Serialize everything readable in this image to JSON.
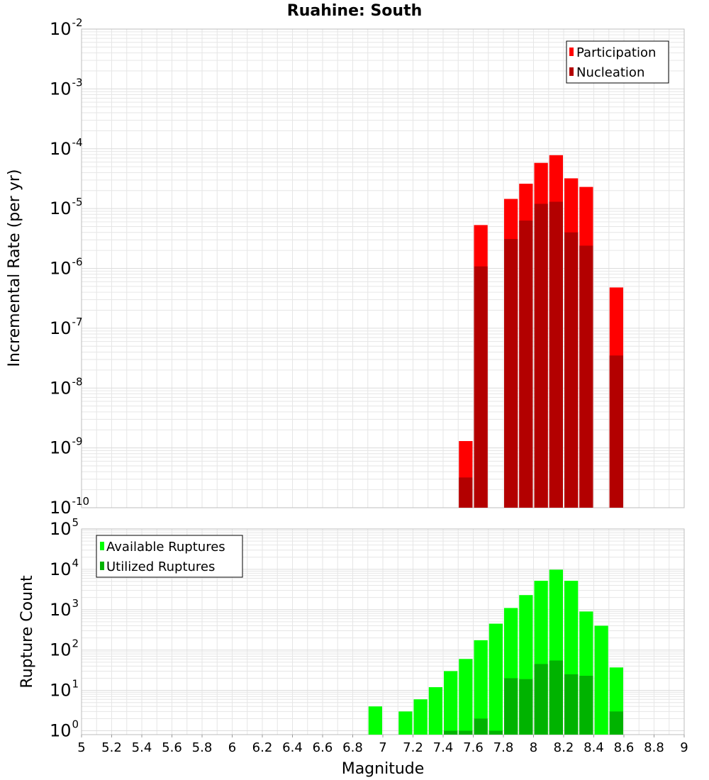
{
  "colors": {
    "participation": "#ff0000",
    "nucleation": "#b30000",
    "available": "#00ff00",
    "utilized": "#00b300",
    "grid": "#e6e6e6",
    "frame": "#bdbdbd"
  },
  "chart_data": [
    {
      "type": "bar",
      "title": "Ruahine: South",
      "xlabel": "Magnitude",
      "ylabel": "Incremental Rate (per yr)",
      "yscale": "log",
      "ylim": [
        1e-10,
        0.01
      ],
      "xlim": [
        5,
        9
      ],
      "bin_width": 0.1,
      "y_tick_exponents": [
        "-2",
        "-3",
        "-4",
        "-5",
        "-6",
        "-7",
        "-8",
        "-9",
        "-10"
      ],
      "legend": {
        "position": "top-right",
        "entries": [
          "Participation",
          "Nucleation"
        ]
      },
      "series": [
        {
          "name": "Participation",
          "x": [
            7.55,
            7.65,
            7.85,
            7.95,
            8.05,
            8.15,
            8.25,
            8.35,
            8.55
          ],
          "values": [
            1.3e-09,
            5.3e-06,
            1.45e-05,
            2.6e-05,
            5.8e-05,
            7.8e-05,
            3.2e-05,
            2.3e-05,
            4.8e-07
          ]
        },
        {
          "name": "Nucleation",
          "x": [
            7.55,
            7.65,
            7.85,
            7.95,
            8.05,
            8.15,
            8.25,
            8.35,
            8.55
          ],
          "values": [
            3.2e-10,
            1.08e-06,
            3.1e-06,
            6.3e-06,
            1.2e-05,
            1.3e-05,
            4e-06,
            2.4e-06,
            3.5e-08
          ]
        }
      ]
    },
    {
      "type": "bar",
      "xlabel": "Magnitude",
      "ylabel": "Rupture Count",
      "yscale": "log",
      "ylim": [
        0.8,
        100000
      ],
      "xlim": [
        5,
        9
      ],
      "bin_width": 0.1,
      "x_ticks": [
        "5",
        "5.2",
        "5.4",
        "5.6",
        "5.8",
        "6",
        "6.2",
        "6.4",
        "6.6",
        "6.8",
        "7",
        "7.2",
        "7.4",
        "7.6",
        "7.8",
        "8",
        "8.2",
        "8.4",
        "8.6",
        "8.8",
        "9"
      ],
      "y_tick_exponents": [
        "5",
        "4",
        "3",
        "2",
        "1",
        "0"
      ],
      "legend": {
        "position": "top-left",
        "entries": [
          "Available Ruptures",
          "Utilized Ruptures"
        ]
      },
      "series": [
        {
          "name": "Available Ruptures",
          "x": [
            6.95,
            7.15,
            7.25,
            7.35,
            7.45,
            7.55,
            7.65,
            7.75,
            7.85,
            7.95,
            8.05,
            8.15,
            8.25,
            8.35,
            8.45,
            8.55
          ],
          "values": [
            4,
            3,
            6,
            12,
            30,
            60,
            175,
            450,
            1100,
            2300,
            5200,
            9800,
            5200,
            900,
            400,
            37
          ]
        },
        {
          "name": "Utilized Ruptures",
          "x": [
            7.45,
            7.55,
            7.65,
            7.75,
            7.85,
            7.95,
            8.05,
            8.15,
            8.25,
            8.35,
            8.55
          ],
          "values": [
            1,
            1,
            2,
            1,
            20,
            19,
            45,
            55,
            25,
            23,
            3
          ]
        }
      ]
    }
  ]
}
